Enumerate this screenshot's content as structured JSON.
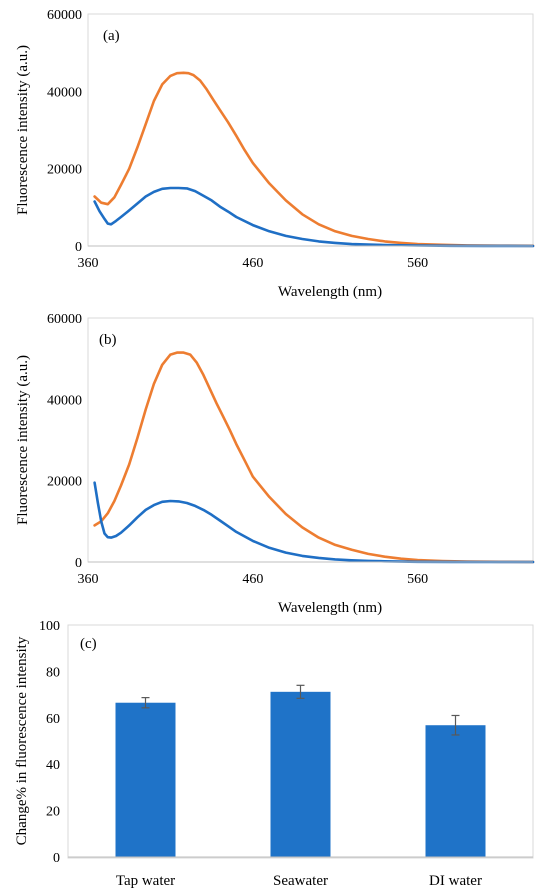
{
  "chart_data": [
    {
      "type": "line",
      "panel_label": "(a)",
      "xlabel": "Wavelength (nm)",
      "ylabel": "Fluorescence intensity (a.u.)",
      "xlim": [
        360,
        630
      ],
      "ylim": [
        0,
        60000
      ],
      "xticks": [
        360,
        460,
        560
      ],
      "yticks": [
        0,
        20000,
        40000,
        60000
      ],
      "grid": false,
      "series": [
        {
          "color": "#ED7D31",
          "x": [
            364,
            368,
            372,
            376,
            380,
            385,
            390,
            395,
            400,
            405,
            410,
            414,
            418,
            421,
            424,
            428,
            432,
            436,
            440,
            445,
            450,
            455,
            460,
            470,
            480,
            490,
            500,
            510,
            520,
            530,
            540,
            550,
            560,
            575,
            590,
            610,
            630
          ],
          "y": [
            12800,
            11200,
            10800,
            12600,
            15800,
            20000,
            25500,
            31500,
            37500,
            41800,
            44000,
            44700,
            44800,
            44700,
            44200,
            42800,
            40500,
            37800,
            35200,
            32000,
            28500,
            24800,
            21500,
            16200,
            11800,
            8200,
            5600,
            3800,
            2600,
            1800,
            1200,
            800,
            500,
            300,
            150,
            80,
            50
          ]
        },
        {
          "color": "#1F6FC5",
          "x": [
            364,
            367,
            370,
            372,
            374,
            377,
            380,
            385,
            390,
            395,
            400,
            405,
            410,
            415,
            420,
            425,
            430,
            435,
            440,
            445,
            450,
            460,
            470,
            480,
            490,
            500,
            510,
            520,
            530,
            540,
            560,
            580,
            600,
            630
          ],
          "y": [
            11500,
            9000,
            7000,
            5800,
            5600,
            6500,
            7500,
            9200,
            11000,
            12800,
            14000,
            14800,
            15000,
            15000,
            14900,
            14200,
            13000,
            11800,
            10200,
            8900,
            7500,
            5400,
            3800,
            2600,
            1800,
            1200,
            800,
            500,
            350,
            250,
            120,
            60,
            30,
            10
          ]
        }
      ]
    },
    {
      "type": "line",
      "panel_label": "(b)",
      "xlabel": "Wavelength (nm)",
      "ylabel": "Fluorescence intensity (a.u.)",
      "xlim": [
        360,
        630
      ],
      "ylim": [
        0,
        60000
      ],
      "xticks": [
        360,
        460,
        560
      ],
      "yticks": [
        0,
        20000,
        40000,
        60000
      ],
      "grid": false,
      "series": [
        {
          "color": "#ED7D31",
          "x": [
            364,
            368,
            372,
            376,
            380,
            385,
            390,
            395,
            400,
            405,
            410,
            414,
            418,
            422,
            426,
            430,
            434,
            438,
            442,
            446,
            450,
            455,
            460,
            470,
            480,
            490,
            500,
            510,
            520,
            530,
            540,
            550,
            560,
            575,
            590,
            610,
            630
          ],
          "y": [
            9000,
            10000,
            12000,
            15000,
            18800,
            24000,
            30500,
            37500,
            43800,
            48500,
            51000,
            51500,
            51500,
            51000,
            49000,
            46000,
            42500,
            39000,
            35800,
            32500,
            29000,
            25000,
            21000,
            16000,
            11800,
            8500,
            6000,
            4200,
            3000,
            2000,
            1300,
            800,
            500,
            250,
            120,
            60,
            30
          ]
        },
        {
          "color": "#1F6FC5",
          "x": [
            364,
            366,
            368,
            370,
            372,
            374,
            377,
            380,
            385,
            390,
            395,
            400,
            405,
            410,
            415,
            420,
            425,
            430,
            435,
            440,
            445,
            450,
            460,
            470,
            480,
            490,
            500,
            510,
            520,
            530,
            540,
            560,
            580,
            600,
            630
          ],
          "y": [
            19500,
            14500,
            10000,
            7000,
            6100,
            6000,
            6400,
            7200,
            9000,
            11000,
            12800,
            14000,
            14800,
            15000,
            14900,
            14500,
            13800,
            12800,
            11600,
            10200,
            8800,
            7400,
            5200,
            3500,
            2300,
            1500,
            1000,
            650,
            420,
            260,
            160,
            60,
            20,
            5,
            0
          ]
        }
      ]
    },
    {
      "type": "bar",
      "panel_label": "(c)",
      "xlabel": "",
      "ylabel": "Change% in fluorescence intensity",
      "ylim": [
        0,
        100
      ],
      "yticks": [
        0,
        20,
        40,
        60,
        80,
        100
      ],
      "grid": false,
      "color": "#1F73C8",
      "categories": [
        "Tap water",
        "Seawater",
        "DI water"
      ],
      "values": [
        66.5,
        71.2,
        56.8
      ],
      "errors": [
        2.2,
        2.8,
        4.2
      ]
    }
  ]
}
